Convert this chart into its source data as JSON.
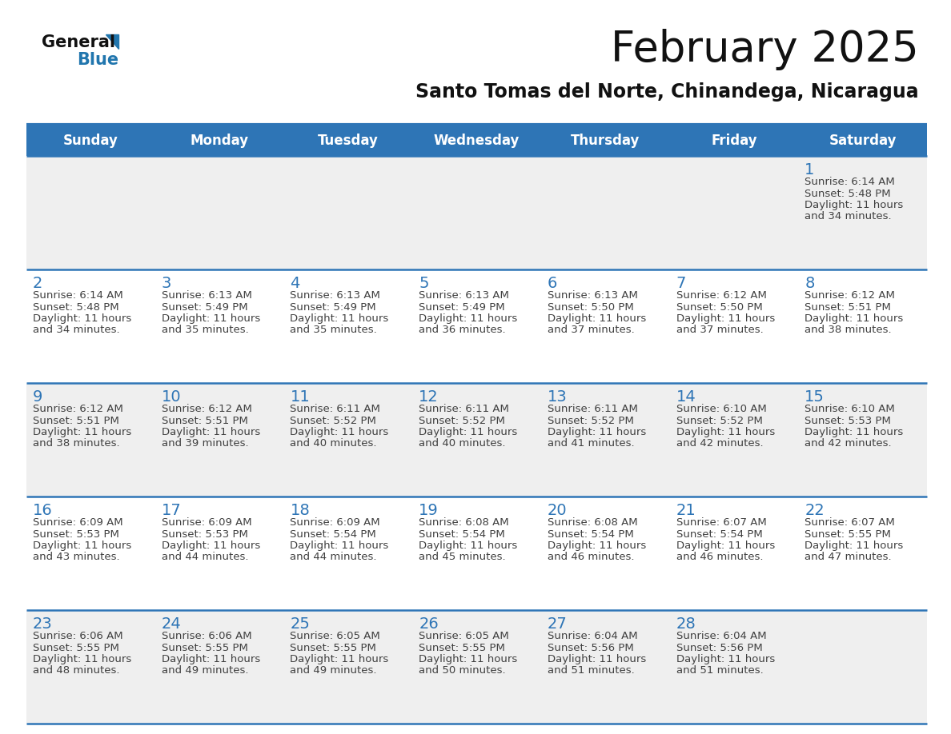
{
  "title": "February 2025",
  "subtitle": "Santo Tomas del Norte, Chinandega, Nicaragua",
  "days_of_week": [
    "Sunday",
    "Monday",
    "Tuesday",
    "Wednesday",
    "Thursday",
    "Friday",
    "Saturday"
  ],
  "header_bg": "#2E75B6",
  "header_text_color": "#FFFFFF",
  "cell_bg_light": "#EFEFEF",
  "cell_bg_white": "#FFFFFF",
  "separator_color": "#2E75B6",
  "text_color": "#404040",
  "date_color": "#2E75B6",
  "title_color": "#111111",
  "subtitle_color": "#111111",
  "logo_general_color": "#111111",
  "logo_blue_color": "#2176AE",
  "days": [
    {
      "date": 1,
      "col": 6,
      "row": 0,
      "sunrise": "6:14 AM",
      "sunset": "5:48 PM",
      "daylight_hours": 11,
      "daylight_minutes": 34
    },
    {
      "date": 2,
      "col": 0,
      "row": 1,
      "sunrise": "6:14 AM",
      "sunset": "5:48 PM",
      "daylight_hours": 11,
      "daylight_minutes": 34
    },
    {
      "date": 3,
      "col": 1,
      "row": 1,
      "sunrise": "6:13 AM",
      "sunset": "5:49 PM",
      "daylight_hours": 11,
      "daylight_minutes": 35
    },
    {
      "date": 4,
      "col": 2,
      "row": 1,
      "sunrise": "6:13 AM",
      "sunset": "5:49 PM",
      "daylight_hours": 11,
      "daylight_minutes": 35
    },
    {
      "date": 5,
      "col": 3,
      "row": 1,
      "sunrise": "6:13 AM",
      "sunset": "5:49 PM",
      "daylight_hours": 11,
      "daylight_minutes": 36
    },
    {
      "date": 6,
      "col": 4,
      "row": 1,
      "sunrise": "6:13 AM",
      "sunset": "5:50 PM",
      "daylight_hours": 11,
      "daylight_minutes": 37
    },
    {
      "date": 7,
      "col": 5,
      "row": 1,
      "sunrise": "6:12 AM",
      "sunset": "5:50 PM",
      "daylight_hours": 11,
      "daylight_minutes": 37
    },
    {
      "date": 8,
      "col": 6,
      "row": 1,
      "sunrise": "6:12 AM",
      "sunset": "5:51 PM",
      "daylight_hours": 11,
      "daylight_minutes": 38
    },
    {
      "date": 9,
      "col": 0,
      "row": 2,
      "sunrise": "6:12 AM",
      "sunset": "5:51 PM",
      "daylight_hours": 11,
      "daylight_minutes": 38
    },
    {
      "date": 10,
      "col": 1,
      "row": 2,
      "sunrise": "6:12 AM",
      "sunset": "5:51 PM",
      "daylight_hours": 11,
      "daylight_minutes": 39
    },
    {
      "date": 11,
      "col": 2,
      "row": 2,
      "sunrise": "6:11 AM",
      "sunset": "5:52 PM",
      "daylight_hours": 11,
      "daylight_minutes": 40
    },
    {
      "date": 12,
      "col": 3,
      "row": 2,
      "sunrise": "6:11 AM",
      "sunset": "5:52 PM",
      "daylight_hours": 11,
      "daylight_minutes": 40
    },
    {
      "date": 13,
      "col": 4,
      "row": 2,
      "sunrise": "6:11 AM",
      "sunset": "5:52 PM",
      "daylight_hours": 11,
      "daylight_minutes": 41
    },
    {
      "date": 14,
      "col": 5,
      "row": 2,
      "sunrise": "6:10 AM",
      "sunset": "5:52 PM",
      "daylight_hours": 11,
      "daylight_minutes": 42
    },
    {
      "date": 15,
      "col": 6,
      "row": 2,
      "sunrise": "6:10 AM",
      "sunset": "5:53 PM",
      "daylight_hours": 11,
      "daylight_minutes": 42
    },
    {
      "date": 16,
      "col": 0,
      "row": 3,
      "sunrise": "6:09 AM",
      "sunset": "5:53 PM",
      "daylight_hours": 11,
      "daylight_minutes": 43
    },
    {
      "date": 17,
      "col": 1,
      "row": 3,
      "sunrise": "6:09 AM",
      "sunset": "5:53 PM",
      "daylight_hours": 11,
      "daylight_minutes": 44
    },
    {
      "date": 18,
      "col": 2,
      "row": 3,
      "sunrise": "6:09 AM",
      "sunset": "5:54 PM",
      "daylight_hours": 11,
      "daylight_minutes": 44
    },
    {
      "date": 19,
      "col": 3,
      "row": 3,
      "sunrise": "6:08 AM",
      "sunset": "5:54 PM",
      "daylight_hours": 11,
      "daylight_minutes": 45
    },
    {
      "date": 20,
      "col": 4,
      "row": 3,
      "sunrise": "6:08 AM",
      "sunset": "5:54 PM",
      "daylight_hours": 11,
      "daylight_minutes": 46
    },
    {
      "date": 21,
      "col": 5,
      "row": 3,
      "sunrise": "6:07 AM",
      "sunset": "5:54 PM",
      "daylight_hours": 11,
      "daylight_minutes": 46
    },
    {
      "date": 22,
      "col": 6,
      "row": 3,
      "sunrise": "6:07 AM",
      "sunset": "5:55 PM",
      "daylight_hours": 11,
      "daylight_minutes": 47
    },
    {
      "date": 23,
      "col": 0,
      "row": 4,
      "sunrise": "6:06 AM",
      "sunset": "5:55 PM",
      "daylight_hours": 11,
      "daylight_minutes": 48
    },
    {
      "date": 24,
      "col": 1,
      "row": 4,
      "sunrise": "6:06 AM",
      "sunset": "5:55 PM",
      "daylight_hours": 11,
      "daylight_minutes": 49
    },
    {
      "date": 25,
      "col": 2,
      "row": 4,
      "sunrise": "6:05 AM",
      "sunset": "5:55 PM",
      "daylight_hours": 11,
      "daylight_minutes": 49
    },
    {
      "date": 26,
      "col": 3,
      "row": 4,
      "sunrise": "6:05 AM",
      "sunset": "5:55 PM",
      "daylight_hours": 11,
      "daylight_minutes": 50
    },
    {
      "date": 27,
      "col": 4,
      "row": 4,
      "sunrise": "6:04 AM",
      "sunset": "5:56 PM",
      "daylight_hours": 11,
      "daylight_minutes": 51
    },
    {
      "date": 28,
      "col": 5,
      "row": 4,
      "sunrise": "6:04 AM",
      "sunset": "5:56 PM",
      "daylight_hours": 11,
      "daylight_minutes": 51
    }
  ],
  "num_rows": 5,
  "num_cols": 7
}
